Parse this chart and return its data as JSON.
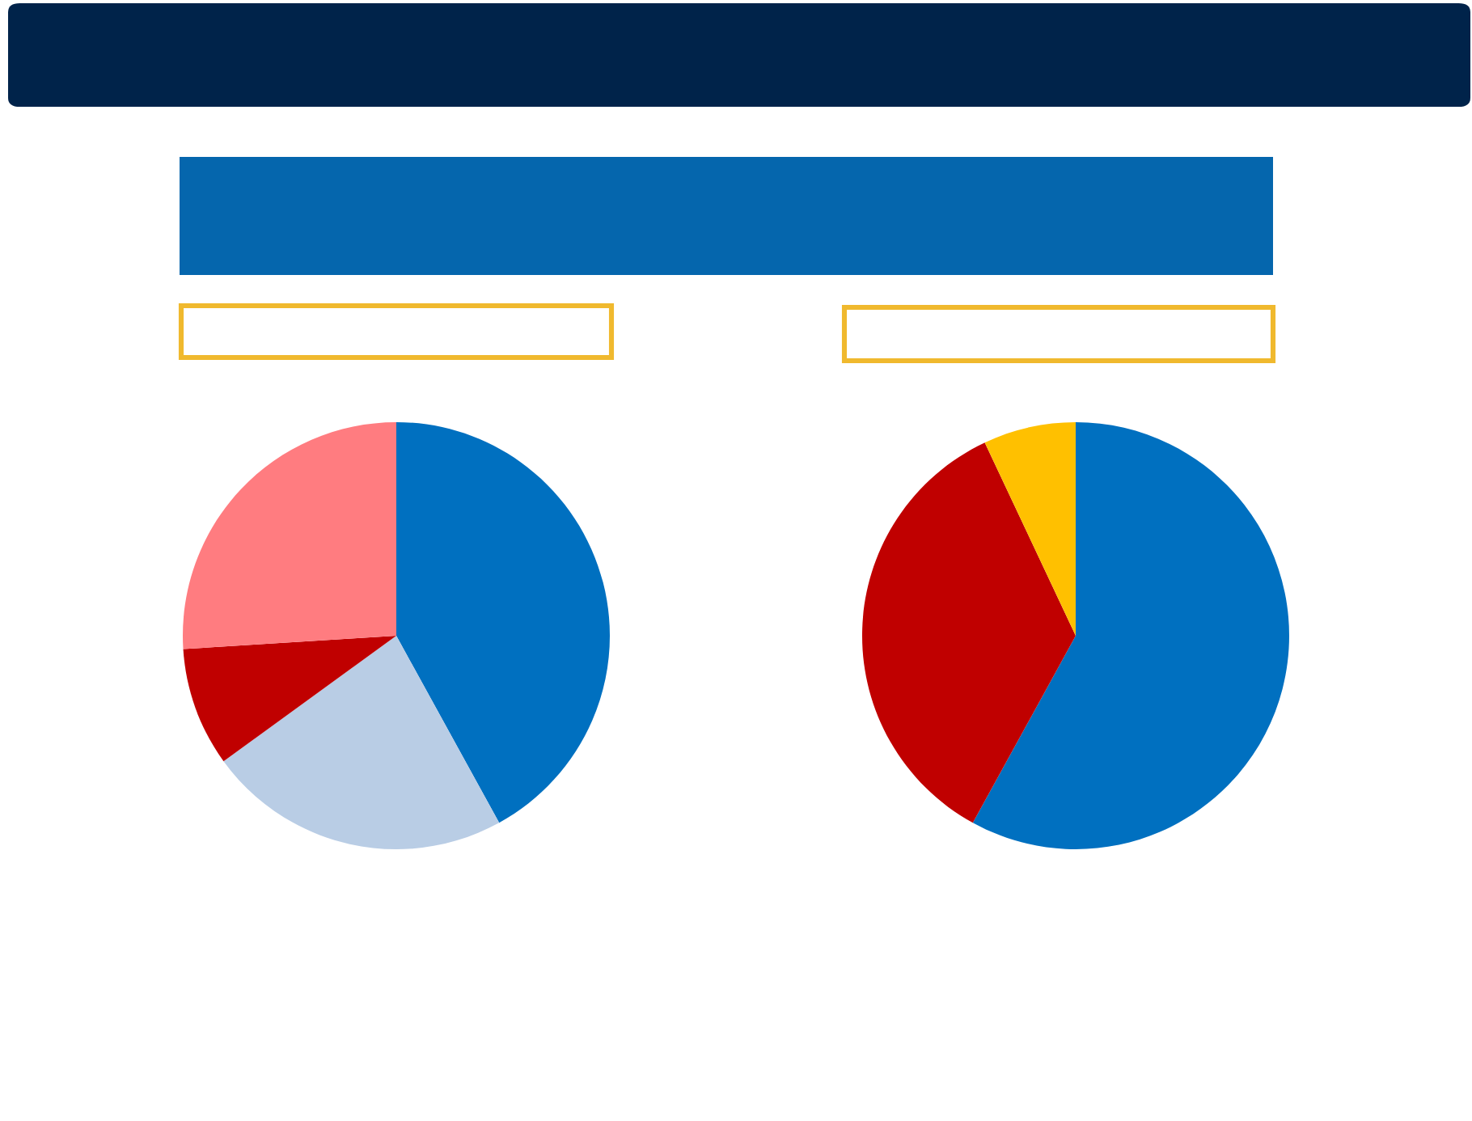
{
  "chart_data": [
    {
      "type": "pie",
      "categories": [
        null,
        null,
        null,
        null
      ],
      "values": [
        42,
        23,
        9,
        26
      ],
      "colors": [
        "#0070c0",
        "#b9cde5",
        "#c00000",
        "#ff7c80"
      ]
    },
    {
      "type": "pie",
      "categories": [
        null,
        null,
        null
      ],
      "values": [
        58,
        35,
        7
      ],
      "colors": [
        "#0070c0",
        "#c00000",
        "#ffc000"
      ]
    }
  ]
}
